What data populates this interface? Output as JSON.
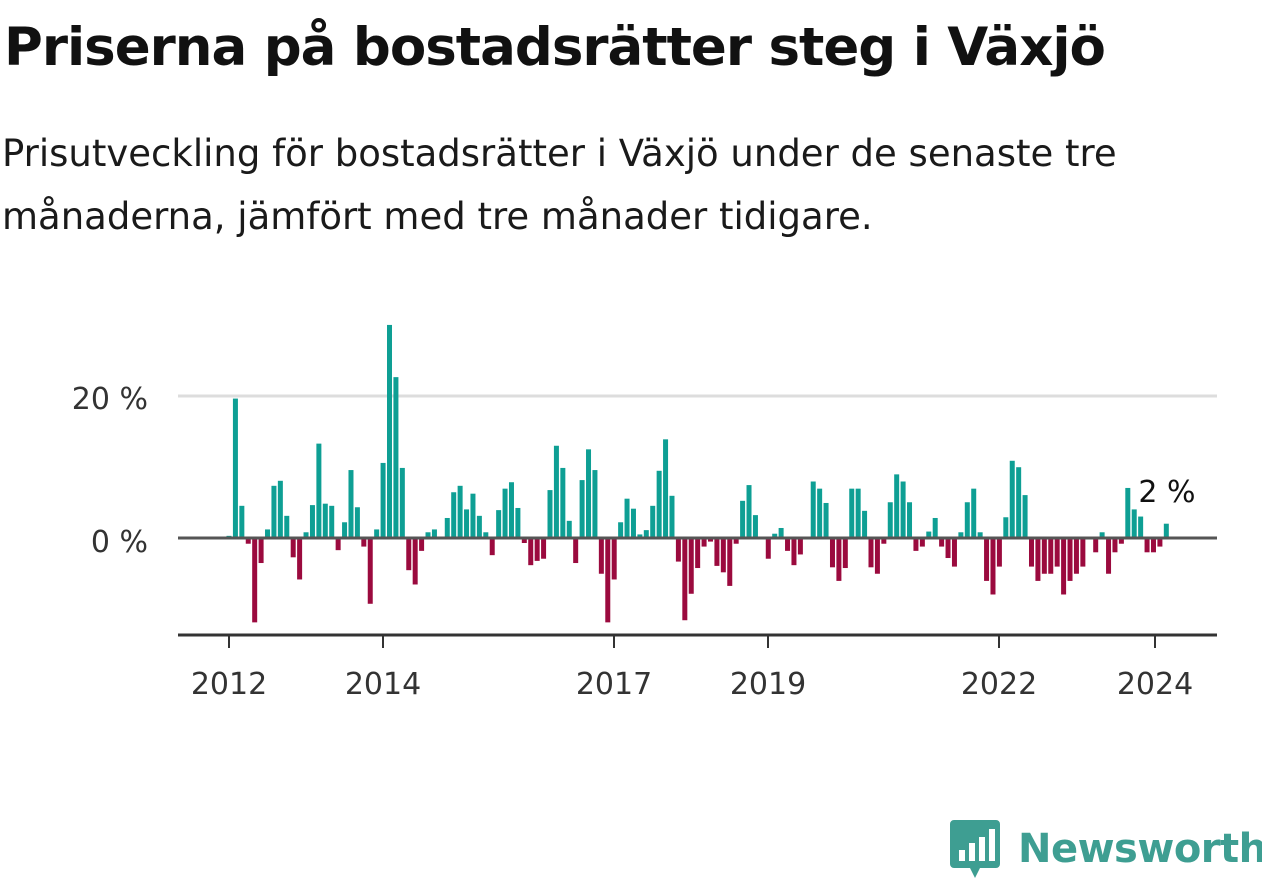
{
  "title": "Priserna på bostadsrätter steg i Växjö",
  "subtitle": "Prisutveckling för bostadsrätter i Växjö under de senaste tre månaderna, jämfört med tre månader tidigare.",
  "brand": {
    "name": "Newsworthy",
    "icon": "newsworthy-logo-icon",
    "color": "#3e9e92"
  },
  "chart_data": {
    "type": "bar",
    "x_start": "2012-01",
    "x_interval": "month",
    "y_tick_labels": [
      "20 %",
      "0 %"
    ],
    "y_ticks": [
      20,
      0
    ],
    "ylim": [
      -13.5,
      30
    ],
    "x_tick_labels": [
      "2012",
      "2014",
      "2017",
      "2019",
      "2022",
      "2024"
    ],
    "annotation": "2 %",
    "grid": "horizontal",
    "colors": {
      "positive": "#0e9f94",
      "negative": "#9b0a3e",
      "zero_line": "#555555",
      "grid": "#dddddd",
      "axis": "#333333"
    },
    "values": [
      0.3,
      19.5,
      4.5,
      -0.8,
      -11.8,
      -3.5,
      1.2,
      7.3,
      8.0,
      3.1,
      -2.7,
      -5.8,
      0.8,
      4.6,
      13.2,
      4.8,
      4.5,
      -1.7,
      2.2,
      9.5,
      4.3,
      -1.2,
      -9.2,
      1.2,
      10.5,
      29.8,
      22.5,
      9.8,
      -4.5,
      -6.5,
      -1.8,
      0.8,
      1.2,
      0.2,
      2.8,
      6.4,
      7.3,
      4.0,
      6.2,
      3.1,
      0.8,
      -2.4,
      3.9,
      6.9,
      7.8,
      4.2,
      -0.7,
      -3.8,
      -3.2,
      -2.9,
      6.7,
      12.9,
      9.8,
      2.4,
      -3.5,
      8.1,
      12.4,
      9.5,
      -5.0,
      -11.8,
      -5.8,
      2.2,
      5.5,
      4.1,
      0.5,
      1.1,
      4.5,
      9.4,
      13.8,
      5.9,
      -3.3,
      -11.5,
      -7.8,
      -4.2,
      -1.2,
      -0.5,
      -3.9,
      -4.8,
      -6.7,
      -0.8,
      5.2,
      7.4,
      3.2,
      -0.2,
      -2.9,
      0.6,
      1.4,
      -1.8,
      -3.8,
      -2.3,
      0.2,
      7.9,
      6.9,
      4.9,
      -4.1,
      -6.0,
      -4.2,
      6.9,
      6.9,
      3.8,
      -4.1,
      -5.0,
      -0.8,
      5.0,
      8.9,
      7.9,
      5.0,
      -1.8,
      -1.2,
      0.9,
      2.8,
      -1.2,
      -2.8,
      -4.0,
      0.8,
      5.0,
      6.9,
      0.8,
      -6.0,
      -7.9,
      -4.0,
      2.9,
      10.8,
      9.9,
      6.0,
      -4.0,
      -6.0,
      -5.0,
      -5.0,
      -4.0,
      -7.9,
      -6.0,
      -5.0,
      -4.0,
      0.2,
      -2.0,
      0.8,
      -5.0,
      -2.0,
      -0.8,
      7.0,
      4.0,
      3.0,
      -2.0,
      -2.0,
      -1.2,
      2.0
    ]
  }
}
